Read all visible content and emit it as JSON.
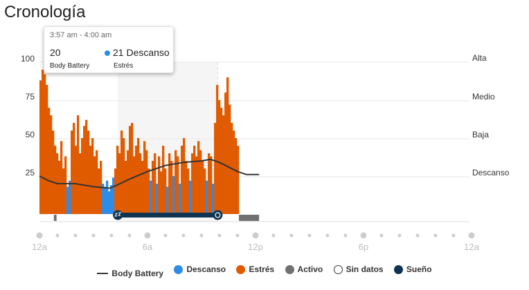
{
  "title": "Cronología",
  "tooltip": {
    "time": "3:57 am - 4:00 am",
    "body_battery_value": "20",
    "body_battery_label": "Body Battery",
    "stress_value": "21 Descanso",
    "stress_label": "Estrés"
  },
  "colors": {
    "rest": "#2e8be6",
    "stress": "#e05a00",
    "active": "#707070",
    "sleep": "#0e3451",
    "body_battery": "#333333"
  },
  "chart_data": {
    "type": "bar",
    "ylim": [
      0,
      100
    ],
    "yticks": [
      "100",
      "75",
      "50",
      "25"
    ],
    "stress_levels": [
      {
        "label": "Alta",
        "value": 76
      },
      {
        "label": "Medio",
        "value": 51
      },
      {
        "label": "Baja",
        "value": 26
      },
      {
        "label": "Descanso",
        "value": 0
      }
    ],
    "xticks": [
      "12a",
      "6a",
      "12p",
      "6p",
      "12a"
    ],
    "stress_start_hour": 0,
    "stress_end_hour": 11.08,
    "stress_values": [
      88,
      95,
      92,
      85,
      70,
      65,
      55,
      45,
      40,
      35,
      48,
      30,
      38,
      18,
      22,
      55,
      60,
      45,
      65,
      40,
      50,
      58,
      62,
      55,
      45,
      50,
      38,
      42,
      30,
      35,
      20,
      18,
      22,
      15,
      19,
      24,
      30,
      45,
      40,
      55,
      50,
      35,
      42,
      58,
      60,
      38,
      45,
      50,
      40,
      35,
      48,
      42,
      30,
      22,
      35,
      40,
      20,
      38,
      28,
      45,
      30,
      18,
      40,
      35,
      25,
      42,
      38,
      20,
      45,
      50,
      35,
      30,
      22,
      40,
      45,
      38,
      48,
      42,
      35,
      30,
      22,
      40,
      38,
      20,
      60,
      85,
      75,
      70,
      65,
      80,
      90,
      72,
      60,
      55,
      50,
      45
    ],
    "rest_threshold": 25,
    "body_battery": [
      [
        0,
        25
      ],
      [
        0.5,
        22
      ],
      [
        1,
        20
      ],
      [
        2,
        20
      ],
      [
        3,
        18
      ],
      [
        3.9,
        17
      ],
      [
        4.3,
        19
      ],
      [
        5,
        23
      ],
      [
        6,
        28
      ],
      [
        7,
        32
      ],
      [
        8,
        34
      ],
      [
        9,
        35
      ],
      [
        9.5,
        36
      ],
      [
        10,
        34
      ],
      [
        10.5,
        31
      ],
      [
        11,
        28
      ],
      [
        11.5,
        26
      ],
      [
        12.2,
        26
      ]
    ],
    "sleep": {
      "start_hour": 4.35,
      "end_hour": 9.9
    },
    "active": [
      [
        0.8,
        0.95
      ],
      [
        11.08,
        12.2
      ]
    ],
    "legend": [
      "Body Battery",
      "Descanso",
      "Estrés",
      "Activo",
      "Sin datos",
      "Sueño"
    ]
  }
}
